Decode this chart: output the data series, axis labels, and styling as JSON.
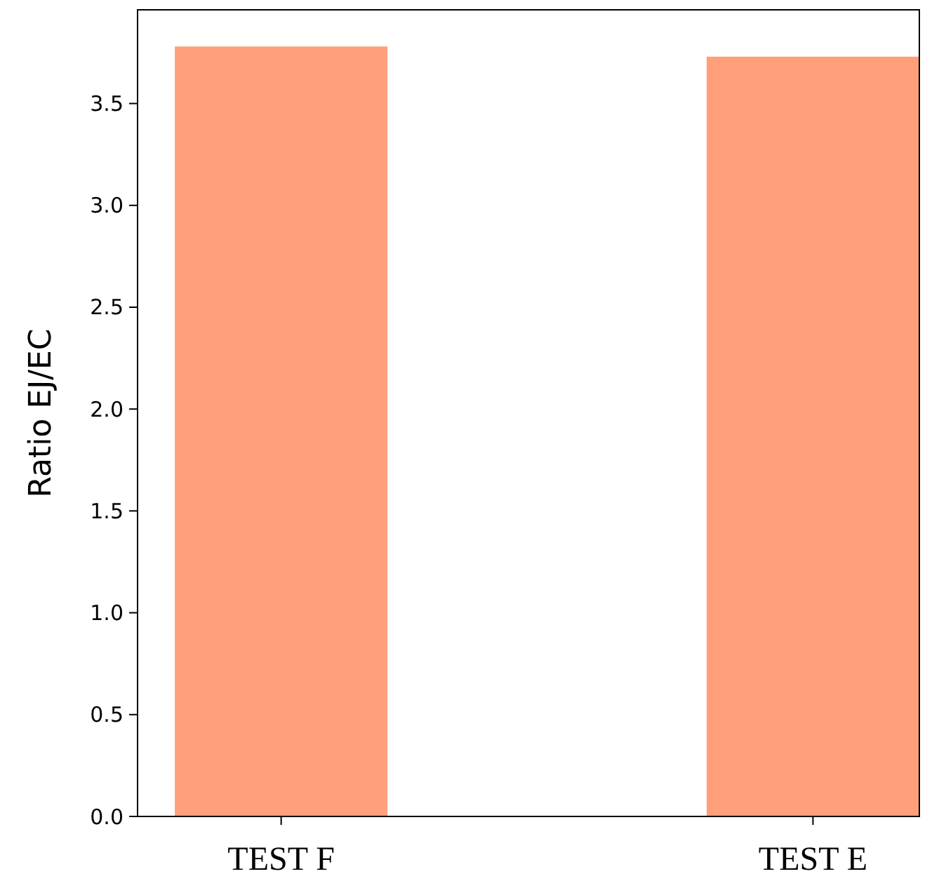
{
  "chart_data": {
    "type": "bar",
    "ylabel": "Ratio EJ/EC",
    "categories": [
      "TEST F",
      "TEST E"
    ],
    "values": [
      3.78,
      3.73
    ],
    "color": "#ffa07a",
    "ylim": [
      0,
      3.96
    ],
    "yticks": [
      {
        "value": 0,
        "label": "0.0"
      },
      {
        "value": 0.5,
        "label": "0.5"
      },
      {
        "value": 1,
        "label": "1.0"
      },
      {
        "value": 1.5,
        "label": "1.5"
      },
      {
        "value": 2,
        "label": "2.0"
      },
      {
        "value": 2.5,
        "label": "2.5"
      },
      {
        "value": 3,
        "label": "3.0"
      },
      {
        "value": 3.5,
        "label": "3.5"
      }
    ],
    "grid": false
  }
}
